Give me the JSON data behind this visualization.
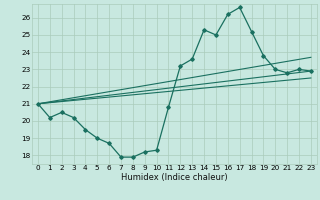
{
  "title": "",
  "xlabel": "Humidex (Indice chaleur)",
  "bg_color": "#c8e8e0",
  "line_color": "#1a7060",
  "grid_color": "#aaccbb",
  "xlim": [
    -0.5,
    23.5
  ],
  "ylim": [
    17.5,
    26.8
  ],
  "yticks": [
    18,
    19,
    20,
    21,
    22,
    23,
    24,
    25,
    26
  ],
  "xticks": [
    0,
    1,
    2,
    3,
    4,
    5,
    6,
    7,
    8,
    9,
    10,
    11,
    12,
    13,
    14,
    15,
    16,
    17,
    18,
    19,
    20,
    21,
    22,
    23
  ],
  "main_series": {
    "x": [
      0,
      1,
      2,
      3,
      4,
      5,
      6,
      7,
      8,
      9,
      10,
      11,
      12,
      13,
      14,
      15,
      16,
      17,
      18,
      19,
      20,
      21,
      22,
      23
    ],
    "y": [
      21.0,
      20.2,
      20.5,
      20.2,
      19.5,
      19.0,
      18.7,
      17.9,
      17.9,
      18.2,
      18.3,
      20.8,
      23.2,
      23.6,
      25.3,
      25.0,
      26.2,
      26.6,
      25.2,
      23.8,
      23.0,
      22.8,
      23.0,
      22.9
    ]
  },
  "straight_lines": [
    {
      "x": [
        0,
        23
      ],
      "y": [
        21.0,
        22.9
      ]
    },
    {
      "x": [
        0,
        23
      ],
      "y": [
        21.0,
        22.5
      ]
    },
    {
      "x": [
        0,
        23
      ],
      "y": [
        21.0,
        23.7
      ]
    }
  ]
}
